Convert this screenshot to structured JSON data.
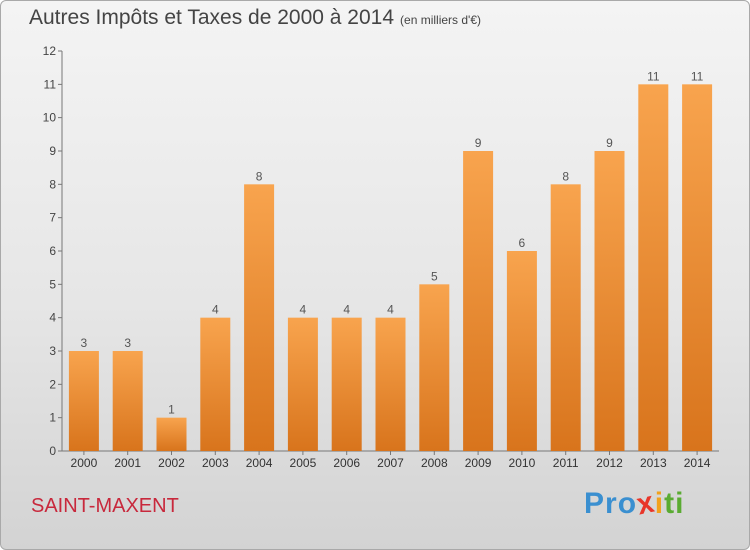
{
  "header": {
    "title": "Autres Impôts et Taxes de 2000 à 2014",
    "unit": "(en milliers d'€)"
  },
  "footer": {
    "place": "SAINT-MAXENT",
    "logo_letters": [
      "P",
      "r",
      "o",
      "x",
      "i",
      "t",
      "i"
    ]
  },
  "colors": {
    "bar_light": "#f8a44e",
    "bar_dark": "#d8741c",
    "place": "#c8283c",
    "logo": [
      "#3a8fd0",
      "#3a8fd0",
      "#3a8fd0",
      "#e8362a",
      "#f2a11c",
      "#5aab32",
      "#5aab32"
    ]
  },
  "chart_data": {
    "type": "bar",
    "title": "Autres Impôts et Taxes de 2000 à 2014",
    "subtitle": "(en milliers d'€)",
    "categories": [
      "2000",
      "2001",
      "2002",
      "2003",
      "2004",
      "2005",
      "2006",
      "2007",
      "2008",
      "2009",
      "2010",
      "2011",
      "2012",
      "2013",
      "2014"
    ],
    "values": [
      3,
      3,
      1,
      4,
      8,
      4,
      4,
      4,
      5,
      9,
      6,
      8,
      9,
      11,
      11
    ],
    "data_labels": [
      "3",
      "3",
      "1",
      "4",
      "8",
      "4",
      "4",
      "4",
      "5",
      "9",
      "6",
      "8",
      "9",
      "11",
      "11"
    ],
    "ylim": [
      0,
      12
    ],
    "yticks": [
      0,
      1,
      2,
      3,
      4,
      5,
      6,
      7,
      8,
      9,
      10,
      11,
      12
    ],
    "grid": false
  }
}
